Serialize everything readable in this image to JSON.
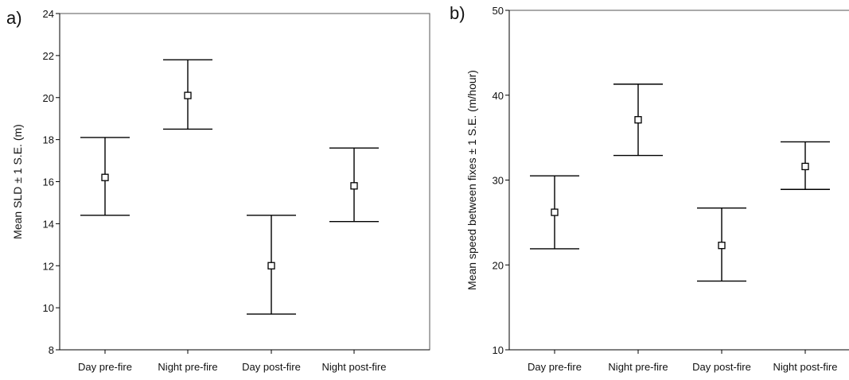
{
  "chart_data": [
    {
      "type": "errorbar",
      "panel_label": "a)",
      "categories": [
        "Day pre-fire",
        "Night pre-fire",
        "Day post-fire",
        "Night post-fire"
      ],
      "values": [
        16.2,
        20.1,
        12.0,
        15.8
      ],
      "lower": [
        14.4,
        18.5,
        9.7,
        14.1
      ],
      "upper": [
        18.1,
        21.8,
        14.4,
        17.6
      ],
      "xlabel": "",
      "ylabel": "Mean SLD  ± 1 S.E. (m)",
      "ylim": [
        8,
        24
      ],
      "yticks": [
        8,
        10,
        12,
        14,
        16,
        18,
        20,
        22,
        24
      ],
      "grid": false,
      "box": true
    },
    {
      "type": "errorbar",
      "panel_label": "b)",
      "categories": [
        "Day pre-fire",
        "Night pre-fire",
        "Day post-fire",
        "Night post-fire"
      ],
      "values": [
        26.2,
        37.1,
        22.3,
        31.6
      ],
      "lower": [
        21.9,
        32.9,
        18.1,
        28.9
      ],
      "upper": [
        30.5,
        41.3,
        26.7,
        34.5
      ],
      "xlabel": "",
      "ylabel": "Mean speed between fixes ± 1 S.E. (m/hour)",
      "ylim": [
        10,
        50
      ],
      "yticks": [
        10,
        20,
        30,
        40,
        50
      ],
      "grid": false,
      "box": false
    }
  ]
}
